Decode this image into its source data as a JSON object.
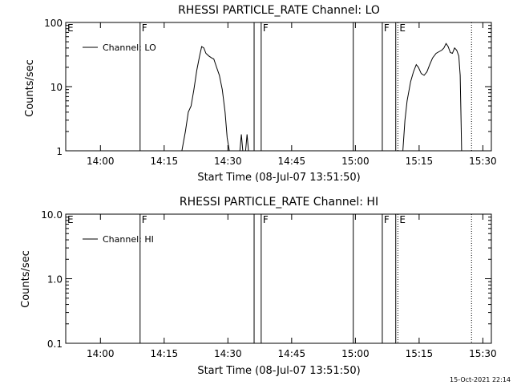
{
  "timestamp": "15-Oct-2021 22:14",
  "chart_data": [
    {
      "type": "line",
      "title": "RHESSI PARTICLE_RATE Channel: LO",
      "xlabel": "Start Time (08-Jul-07 13:51:50)",
      "ylabel": "Counts/sec",
      "yscale": "log",
      "xlim": [
        "13:51:50",
        "15:32:00"
      ],
      "ylim": [
        1,
        100
      ],
      "x_ticks": [
        "14:00",
        "14:15",
        "14:30",
        "14:45",
        "15:00",
        "15:15",
        "15:30"
      ],
      "y_ticks": [
        "1",
        "10",
        "100"
      ],
      "legend": {
        "label": "Channel: LO",
        "placement": "top-left"
      },
      "markers": [
        {
          "label": "E",
          "time": "13:51:50",
          "style": "none"
        },
        {
          "label": "F",
          "time": "14:09:20",
          "style": "solid"
        },
        {
          "label": "",
          "time": "14:36:10",
          "style": "solid"
        },
        {
          "label": "F",
          "time": "14:37:50",
          "style": "solid"
        },
        {
          "label": "",
          "time": "14:59:30",
          "style": "solid"
        },
        {
          "label": "F",
          "time": "15:06:20",
          "style": "solid"
        },
        {
          "label": "",
          "time": "15:09:30",
          "style": "solid"
        },
        {
          "label": "E",
          "time": "15:10:00",
          "style": "dotted"
        },
        {
          "label": "",
          "time": "15:27:20",
          "style": "dotted"
        }
      ],
      "series": [
        {
          "segments": [
            [
              [
                "14:19:10",
                1
              ],
              [
                "14:20:00",
                2
              ],
              [
                "14:20:40",
                4
              ],
              [
                "14:21:20",
                5
              ],
              [
                "14:22:00",
                9
              ],
              [
                "14:22:40",
                18
              ],
              [
                "14:23:20",
                30
              ],
              [
                "14:23:50",
                42
              ],
              [
                "14:24:20",
                40
              ],
              [
                "14:24:50",
                33
              ],
              [
                "14:25:30",
                30
              ],
              [
                "14:26:10",
                28
              ],
              [
                "14:26:40",
                27
              ],
              [
                "14:27:20",
                20
              ],
              [
                "14:28:00",
                15
              ],
              [
                "14:28:40",
                9
              ],
              [
                "14:29:20",
                4
              ],
              [
                "14:29:50",
                1.6
              ],
              [
                "14:30:20",
                1
              ]
            ],
            [
              [
                "14:32:50",
                1
              ],
              [
                "14:33:10",
                1.8
              ],
              [
                "14:33:30",
                1
              ]
            ],
            [
              [
                "14:34:10",
                1
              ],
              [
                "14:34:30",
                1.8
              ],
              [
                "14:34:50",
                1
              ]
            ],
            [
              [
                "15:11:10",
                1
              ],
              [
                "15:11:40",
                3
              ],
              [
                "15:12:10",
                6
              ],
              [
                "15:13:00",
                12
              ],
              [
                "15:13:40",
                17
              ],
              [
                "15:14:20",
                22
              ],
              [
                "15:14:50",
                20
              ],
              [
                "15:15:30",
                16
              ],
              [
                "15:16:10",
                15
              ],
              [
                "15:16:50",
                17
              ],
              [
                "15:17:30",
                22
              ],
              [
                "15:18:10",
                28
              ],
              [
                "15:19:00",
                33
              ],
              [
                "15:19:40",
                35
              ],
              [
                "15:20:20",
                37
              ],
              [
                "15:20:50",
                40
              ],
              [
                "15:21:20",
                47
              ],
              [
                "15:21:50",
                42
              ],
              [
                "15:22:20",
                34
              ],
              [
                "15:22:50",
                33
              ],
              [
                "15:23:20",
                40
              ],
              [
                "15:23:50",
                37
              ],
              [
                "15:24:20",
                30
              ],
              [
                "15:24:40",
                15
              ],
              [
                "15:24:50",
                4
              ],
              [
                "15:25:00",
                1
              ]
            ]
          ]
        }
      ]
    },
    {
      "type": "line",
      "title": "RHESSI PARTICLE_RATE Channel: HI",
      "xlabel": "Start Time (08-Jul-07 13:51:50)",
      "ylabel": "Counts/sec",
      "yscale": "log",
      "xlim": [
        "13:51:50",
        "15:32:00"
      ],
      "ylim": [
        0.1,
        10
      ],
      "x_ticks": [
        "14:00",
        "14:15",
        "14:30",
        "14:45",
        "15:00",
        "15:15",
        "15:30"
      ],
      "y_ticks": [
        "0.1",
        "1.0",
        "10.0"
      ],
      "legend": {
        "label": "Channel: HI",
        "placement": "top-left"
      },
      "markers": [
        {
          "label": "E",
          "time": "13:51:50",
          "style": "none"
        },
        {
          "label": "F",
          "time": "14:09:20",
          "style": "solid"
        },
        {
          "label": "",
          "time": "14:36:10",
          "style": "solid"
        },
        {
          "label": "F",
          "time": "14:37:50",
          "style": "solid"
        },
        {
          "label": "",
          "time": "14:59:30",
          "style": "solid"
        },
        {
          "label": "F",
          "time": "15:06:20",
          "style": "solid"
        },
        {
          "label": "",
          "time": "15:09:30",
          "style": "solid"
        },
        {
          "label": "E",
          "time": "15:10:00",
          "style": "dotted"
        },
        {
          "label": "",
          "time": "15:27:20",
          "style": "dotted"
        }
      ],
      "series": [
        {
          "segments": []
        }
      ]
    }
  ]
}
